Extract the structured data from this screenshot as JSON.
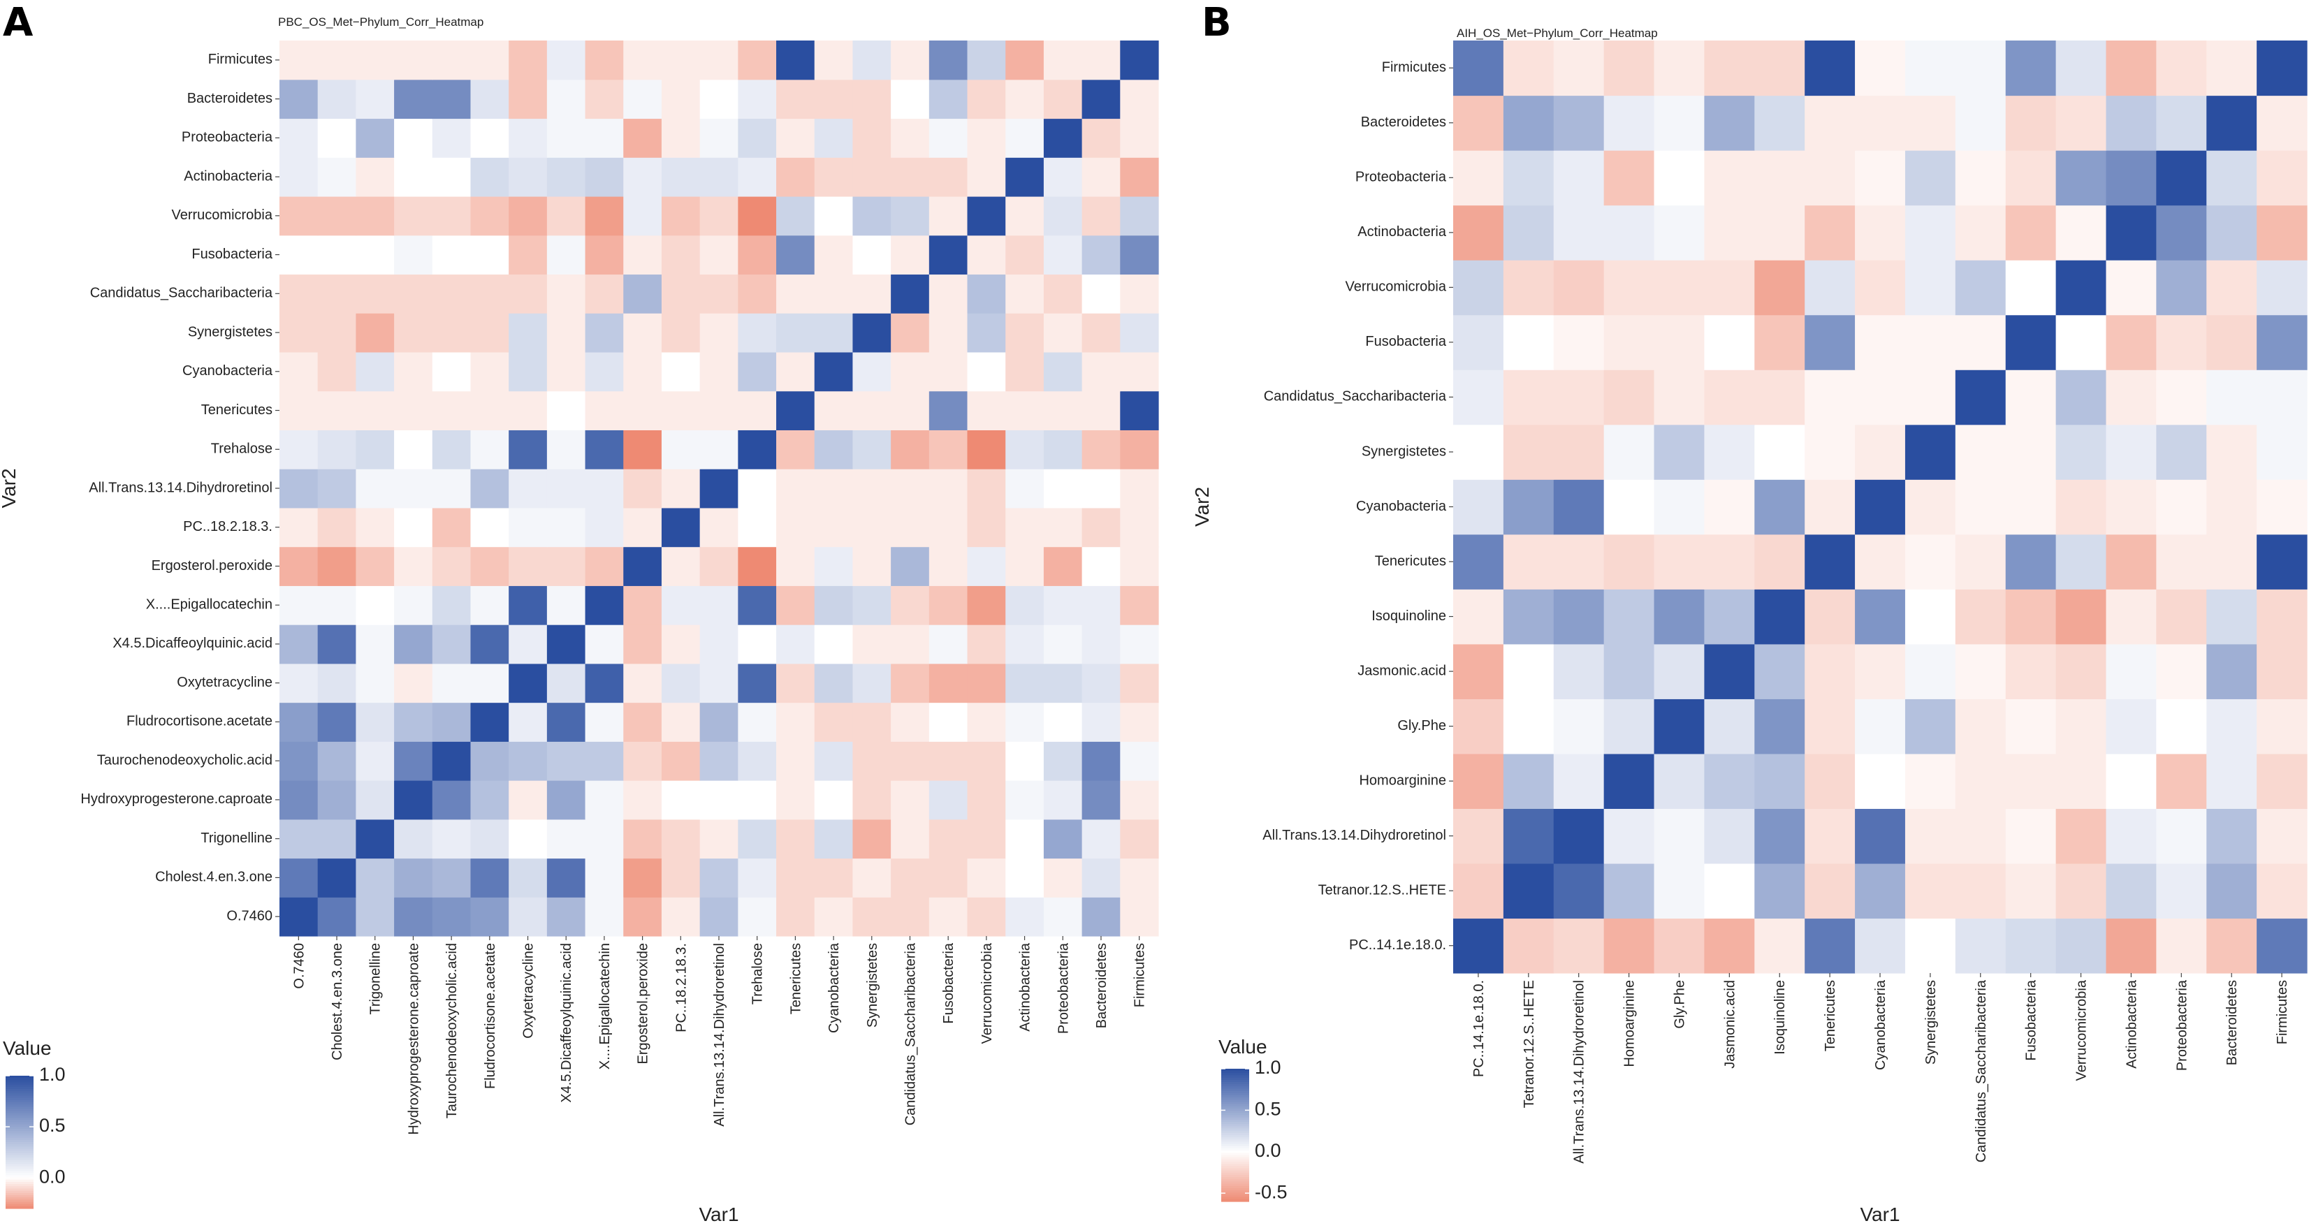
{
  "figure": {
    "panels": [
      {
        "letter": "A",
        "title": "PBC_OS_Met−Phylum_Corr_Heatmap"
      },
      {
        "letter": "B",
        "title": "AIH_OS_Met−Phylum_Corr_Heatmap"
      }
    ]
  },
  "chart_data": [
    {
      "type": "heatmap",
      "title": "PBC_OS_Met−Phylum_Corr_Heatmap",
      "xlabel": "Var1",
      "ylabel": "Var2",
      "x": [
        "O.7460",
        "Cholest.4.en.3.one",
        "Trigonelline",
        "Hydroxyprogesterone.caproate",
        "Taurochenodeoxycholic.acid",
        "Fludrocortisone.acetate",
        "Oxytetracycline",
        "X4.5.Dicaffeoylquinic.acid",
        "X....Epigallocatechin",
        "Ergosterol.peroxide",
        "PC..18.2.18.3.",
        "All.Trans.13.14.Dihydroretinol",
        "Trehalose",
        "Tenericutes",
        "Cyanobacteria",
        "Synergistetes",
        "Candidatus_Saccharibacteria",
        "Fusobacteria",
        "Verrucomicrobia",
        "Actinobacteria",
        "Proteobacteria",
        "Bacteroidetes",
        "Firmicutes"
      ],
      "y": [
        "O.7460",
        "Cholest.4.en.3.one",
        "Trigonelline",
        "Hydroxyprogesterone.caproate",
        "Taurochenodeoxycholic.acid",
        "Fludrocortisone.acetate",
        "Oxytetracycline",
        "X4.5.Dicaffeoylquinic.acid",
        "X....Epigallocatechin",
        "Ergosterol.peroxide",
        "PC..18.2.18.3.",
        "All.Trans.13.14.Dihydroretinol",
        "Trehalose",
        "Tenericutes",
        "Cyanobacteria",
        "Synergistetes",
        "Candidatus_Saccharibacteria",
        "Fusobacteria",
        "Verrucomicrobia",
        "Actinobacteria",
        "Proteobacteria",
        "Bacteroidetes",
        "Firmicutes"
      ],
      "values": [
        [
          1.0,
          0.75,
          0.3,
          0.65,
          0.6,
          0.55,
          0.15,
          0.4,
          0.05,
          -0.2,
          -0.05,
          0.35,
          0.05,
          -0.1,
          -0.05,
          -0.1,
          -0.1,
          -0.05,
          -0.1,
          0.1,
          0.05,
          0.45,
          -0.05
        ],
        [
          0.75,
          1.0,
          0.3,
          0.45,
          0.4,
          0.75,
          0.2,
          0.8,
          0.05,
          -0.25,
          -0.1,
          0.3,
          0.1,
          -0.1,
          -0.1,
          -0.05,
          -0.1,
          -0.1,
          -0.05,
          0.0,
          -0.05,
          0.15,
          -0.05
        ],
        [
          0.3,
          0.3,
          1.0,
          0.15,
          0.1,
          0.15,
          0.0,
          0.05,
          0.05,
          -0.15,
          -0.1,
          -0.05,
          0.2,
          -0.1,
          0.2,
          -0.2,
          -0.05,
          -0.1,
          -0.1,
          0.0,
          0.5,
          0.1,
          -0.1
        ],
        [
          0.65,
          0.45,
          0.15,
          1.0,
          0.7,
          0.35,
          -0.05,
          0.5,
          0.05,
          -0.05,
          0.0,
          0.0,
          0.0,
          -0.05,
          0.0,
          -0.1,
          -0.05,
          0.15,
          -0.1,
          0.05,
          0.1,
          0.65,
          -0.05
        ],
        [
          0.6,
          0.4,
          0.1,
          0.7,
          1.0,
          0.4,
          0.35,
          0.3,
          0.3,
          -0.1,
          -0.15,
          0.3,
          0.15,
          -0.05,
          0.15,
          -0.1,
          -0.1,
          -0.1,
          -0.1,
          0.0,
          0.2,
          0.7,
          0.05
        ],
        [
          0.55,
          0.75,
          0.15,
          0.35,
          0.4,
          1.0,
          0.1,
          0.85,
          0.05,
          -0.15,
          -0.05,
          0.4,
          0.05,
          -0.05,
          -0.1,
          -0.1,
          -0.05,
          0.0,
          -0.05,
          0.05,
          0.0,
          0.1,
          -0.05
        ],
        [
          0.1,
          0.15,
          0.05,
          -0.05,
          0.05,
          0.05,
          1.0,
          0.15,
          0.9,
          -0.05,
          0.15,
          0.1,
          0.85,
          -0.1,
          0.25,
          0.15,
          -0.15,
          -0.2,
          -0.2,
          0.2,
          0.2,
          0.15,
          -0.1
        ],
        [
          0.4,
          0.8,
          0.05,
          0.5,
          0.3,
          0.85,
          0.1,
          1.0,
          0.05,
          -0.15,
          -0.05,
          0.1,
          0.0,
          0.1,
          0.0,
          -0.05,
          -0.05,
          0.05,
          -0.1,
          0.1,
          0.05,
          0.1,
          0.05
        ],
        [
          0.05,
          0.05,
          0.0,
          0.05,
          0.2,
          0.05,
          0.9,
          0.05,
          1.0,
          -0.15,
          0.1,
          0.1,
          0.85,
          -0.15,
          0.25,
          0.2,
          -0.1,
          -0.15,
          -0.25,
          0.15,
          0.1,
          0.1,
          -0.15
        ],
        [
          -0.2,
          -0.25,
          -0.15,
          -0.05,
          -0.1,
          -0.15,
          -0.1,
          -0.1,
          -0.15,
          1.0,
          -0.05,
          -0.1,
          -0.3,
          -0.05,
          0.1,
          -0.05,
          0.4,
          -0.05,
          0.1,
          -0.05,
          -0.2,
          0.0,
          -0.05
        ],
        [
          -0.05,
          -0.1,
          -0.05,
          0.0,
          -0.15,
          0.0,
          0.05,
          0.05,
          0.1,
          -0.05,
          1.0,
          -0.05,
          0.0,
          -0.05,
          -0.05,
          -0.05,
          -0.05,
          -0.05,
          -0.1,
          -0.05,
          -0.05,
          -0.1,
          -0.05
        ],
        [
          0.35,
          0.3,
          0.05,
          0.05,
          0.05,
          0.35,
          0.1,
          0.1,
          0.1,
          -0.1,
          -0.05,
          1.0,
          0.0,
          -0.05,
          -0.05,
          -0.05,
          -0.05,
          -0.05,
          -0.1,
          0.05,
          0.0,
          0.0,
          -0.05
        ],
        [
          0.1,
          0.15,
          0.2,
          0.0,
          0.2,
          0.05,
          0.85,
          0.05,
          0.85,
          -0.3,
          0.05,
          0.05,
          1.0,
          -0.15,
          0.3,
          0.2,
          -0.2,
          -0.15,
          -0.3,
          0.15,
          0.2,
          -0.15,
          -0.2
        ],
        [
          -0.05,
          -0.05,
          -0.05,
          -0.05,
          -0.05,
          -0.05,
          -0.05,
          0.0,
          -0.05,
          -0.05,
          -0.05,
          -0.05,
          -0.05,
          1.0,
          -0.05,
          -0.05,
          -0.05,
          0.65,
          -0.05,
          -0.05,
          -0.05,
          -0.05,
          1.0
        ],
        [
          -0.05,
          -0.1,
          0.15,
          -0.05,
          0.0,
          -0.05,
          0.2,
          -0.05,
          0.15,
          -0.05,
          0.0,
          -0.05,
          0.3,
          -0.05,
          1.0,
          0.1,
          -0.05,
          -0.05,
          0.0,
          -0.1,
          0.2,
          -0.05,
          -0.05
        ],
        [
          -0.1,
          -0.1,
          -0.2,
          -0.1,
          -0.1,
          -0.1,
          0.2,
          -0.05,
          0.3,
          -0.05,
          -0.1,
          -0.05,
          0.15,
          0.2,
          0.2,
          1.0,
          -0.15,
          -0.05,
          0.3,
          -0.1,
          -0.05,
          -0.1,
          0.15
        ],
        [
          -0.1,
          -0.1,
          -0.1,
          -0.1,
          -0.1,
          -0.1,
          -0.1,
          -0.05,
          -0.1,
          0.4,
          -0.1,
          -0.1,
          -0.15,
          -0.05,
          -0.05,
          -0.05,
          1.0,
          -0.05,
          0.35,
          -0.05,
          -0.1,
          0.0,
          -0.05
        ],
        [
          0.0,
          0.0,
          0.0,
          0.05,
          0.0,
          0.0,
          -0.15,
          0.05,
          -0.2,
          -0.05,
          -0.1,
          -0.05,
          -0.2,
          0.65,
          -0.05,
          0.0,
          -0.05,
          1.0,
          -0.05,
          -0.1,
          0.1,
          0.3,
          0.65
        ],
        [
          -0.15,
          -0.15,
          -0.15,
          -0.1,
          -0.1,
          -0.15,
          -0.2,
          -0.1,
          -0.25,
          0.1,
          -0.15,
          -0.1,
          -0.3,
          0.25,
          0.0,
          0.3,
          0.25,
          -0.05,
          1.0,
          -0.05,
          0.15,
          -0.1,
          0.25
        ],
        [
          0.1,
          0.05,
          -0.05,
          0.0,
          0.0,
          0.2,
          0.15,
          0.2,
          0.25,
          0.1,
          0.15,
          0.15,
          0.1,
          -0.15,
          -0.1,
          -0.1,
          -0.1,
          -0.1,
          -0.05,
          1.0,
          0.1,
          -0.05,
          -0.2
        ],
        [
          0.1,
          0.0,
          0.4,
          0.0,
          0.1,
          0.0,
          0.1,
          0.05,
          0.05,
          -0.2,
          -0.05,
          0.05,
          0.2,
          -0.05,
          0.15,
          -0.1,
          -0.05,
          0.05,
          -0.05,
          0.05,
          1.0,
          -0.1,
          -0.05
        ],
        [
          0.45,
          0.15,
          0.1,
          0.65,
          0.65,
          0.15,
          -0.15,
          0.05,
          -0.1,
          0.05,
          -0.05,
          0.0,
          0.1,
          -0.1,
          -0.1,
          -0.1,
          0.0,
          0.3,
          -0.1,
          -0.05,
          -0.1,
          1.0,
          -0.05
        ],
        [
          -0.05,
          -0.05,
          -0.05,
          -0.05,
          -0.05,
          -0.05,
          -0.15,
          0.1,
          -0.15,
          -0.05,
          -0.05,
          -0.05,
          -0.15,
          1.0,
          -0.05,
          0.15,
          -0.05,
          0.65,
          0.25,
          -0.2,
          -0.05,
          -0.05,
          1.0
        ]
      ],
      "legend": {
        "title": "Value",
        "ticks": [
          "1.0",
          "0.5",
          "0.0"
        ],
        "range": [
          -0.3,
          1.0
        ],
        "placement": "left"
      },
      "colors": {
        "high": "#2a4ea0",
        "mid": "#ffffff",
        "low": "#ee8a73"
      }
    },
    {
      "type": "heatmap",
      "title": "AIH_OS_Met−Phylum_Corr_Heatmap",
      "xlabel": "Var1",
      "ylabel": "Var2",
      "x": [
        "PC..14.1e.18.0.",
        "Tetranor.12.S..HETE",
        "All.Trans.13.14.Dihydroretinol",
        "Homoarginine",
        "Gly.Phe",
        "Jasmonic.acid",
        "Isoquinoline",
        "Tenericutes",
        "Cyanobacteria",
        "Synergistetes",
        "Candidatus_Saccharibacteria",
        "Fusobacteria",
        "Verrucomicrobia",
        "Actinobacteria",
        "Proteobacteria",
        "Bacteroidetes",
        "Firmicutes"
      ],
      "y": [
        "PC..14.1e.18.0.",
        "Tetranor.12.S..HETE",
        "All.Trans.13.14.Dihydroretinol",
        "Homoarginine",
        "Gly.Phe",
        "Jasmonic.acid",
        "Isoquinoline",
        "Tenericutes",
        "Cyanobacteria",
        "Synergistetes",
        "Candidatus_Saccharibacteria",
        "Fusobacteria",
        "Verrucomicrobia",
        "Actinobacteria",
        "Proteobacteria",
        "Bacteroidetes",
        "Firmicutes"
      ],
      "values": [
        [
          1.0,
          -0.25,
          -0.2,
          -0.4,
          -0.25,
          -0.4,
          -0.1,
          0.75,
          0.15,
          0.0,
          0.15,
          0.2,
          0.25,
          -0.45,
          -0.1,
          -0.3,
          0.75
        ],
        [
          -0.25,
          1.0,
          0.85,
          0.35,
          0.05,
          0.0,
          0.45,
          -0.2,
          0.45,
          -0.15,
          -0.15,
          -0.1,
          -0.2,
          0.25,
          0.1,
          0.45,
          -0.15
        ],
        [
          -0.2,
          0.85,
          1.0,
          0.1,
          0.05,
          0.15,
          0.6,
          -0.15,
          0.8,
          -0.1,
          -0.1,
          -0.05,
          -0.3,
          0.1,
          0.05,
          0.35,
          -0.1
        ],
        [
          -0.4,
          0.35,
          0.1,
          1.0,
          0.15,
          0.3,
          0.35,
          -0.2,
          0.0,
          -0.05,
          -0.1,
          -0.1,
          -0.1,
          0.0,
          -0.3,
          0.1,
          -0.2
        ],
        [
          -0.25,
          0.0,
          0.05,
          0.15,
          1.0,
          0.15,
          0.6,
          -0.15,
          0.05,
          0.35,
          -0.1,
          -0.05,
          -0.1,
          0.1,
          0.0,
          0.1,
          -0.1
        ],
        [
          -0.4,
          0.0,
          0.15,
          0.3,
          0.15,
          1.0,
          0.35,
          -0.15,
          -0.1,
          0.05,
          -0.05,
          -0.15,
          -0.2,
          0.05,
          -0.05,
          0.45,
          -0.2
        ],
        [
          -0.1,
          0.45,
          0.55,
          0.3,
          0.6,
          0.35,
          1.0,
          -0.2,
          0.6,
          0.0,
          -0.2,
          -0.3,
          -0.45,
          -0.1,
          -0.2,
          0.2,
          -0.2
        ],
        [
          0.7,
          -0.15,
          -0.15,
          -0.2,
          -0.15,
          -0.15,
          -0.2,
          1.0,
          -0.1,
          -0.05,
          -0.1,
          0.6,
          0.2,
          -0.35,
          -0.1,
          -0.1,
          1.0
        ],
        [
          0.15,
          0.55,
          0.75,
          0.0,
          0.05,
          -0.05,
          0.55,
          -0.1,
          1.0,
          -0.1,
          -0.05,
          -0.05,
          -0.15,
          -0.1,
          -0.05,
          -0.1,
          -0.05
        ],
        [
          0.0,
          -0.2,
          -0.2,
          0.05,
          0.3,
          0.1,
          0.0,
          -0.05,
          -0.1,
          1.0,
          -0.05,
          -0.05,
          0.2,
          0.1,
          0.25,
          -0.1,
          0.05
        ],
        [
          0.1,
          -0.15,
          -0.15,
          -0.2,
          -0.1,
          -0.15,
          -0.15,
          -0.05,
          -0.05,
          -0.05,
          1.0,
          -0.05,
          0.35,
          -0.1,
          -0.05,
          0.05,
          0.05
        ],
        [
          0.15,
          0.0,
          -0.05,
          -0.1,
          -0.1,
          0.0,
          -0.3,
          0.6,
          -0.05,
          -0.05,
          -0.05,
          1.0,
          0.0,
          -0.3,
          -0.15,
          -0.2,
          0.6
        ],
        [
          0.25,
          -0.2,
          -0.25,
          -0.15,
          -0.15,
          -0.15,
          -0.45,
          0.15,
          -0.15,
          0.1,
          0.3,
          0.0,
          1.0,
          -0.05,
          0.45,
          -0.15,
          0.15
        ],
        [
          -0.45,
          0.25,
          0.1,
          0.1,
          0.05,
          -0.1,
          -0.1,
          -0.3,
          -0.1,
          0.1,
          -0.1,
          -0.3,
          -0.05,
          1.0,
          0.65,
          0.3,
          -0.35
        ],
        [
          -0.1,
          0.2,
          0.1,
          -0.3,
          0.0,
          -0.1,
          -0.1,
          -0.1,
          -0.05,
          0.25,
          -0.05,
          -0.15,
          0.55,
          0.65,
          1.0,
          0.2,
          -0.15
        ],
        [
          -0.3,
          0.5,
          0.4,
          0.1,
          0.05,
          0.45,
          0.2,
          -0.1,
          -0.1,
          -0.1,
          0.05,
          -0.2,
          -0.15,
          0.3,
          0.2,
          1.0,
          -0.1
        ],
        [
          0.75,
          -0.15,
          -0.1,
          -0.2,
          -0.1,
          -0.2,
          -0.2,
          1.0,
          -0.05,
          0.05,
          0.05,
          0.6,
          0.15,
          -0.35,
          -0.15,
          -0.1,
          1.0
        ]
      ],
      "legend": {
        "title": "Value",
        "ticks": [
          "1.0",
          "0.5",
          "0.0",
          "-0.5"
        ],
        "range": [
          -0.6,
          1.0
        ],
        "placement": "left"
      },
      "colors": {
        "high": "#2a4ea0",
        "mid": "#ffffff",
        "low": "#ee8a73"
      }
    }
  ]
}
